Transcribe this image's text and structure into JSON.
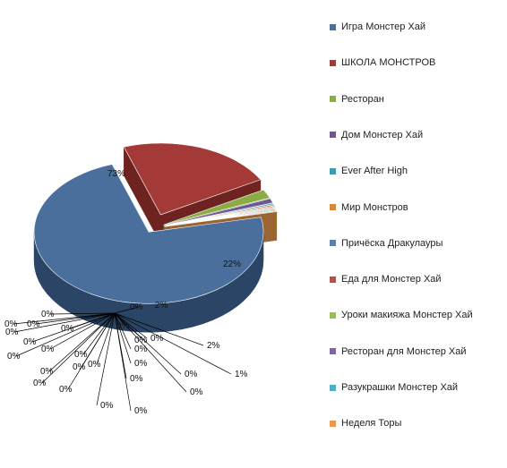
{
  "chart_data": {
    "type": "pie",
    "style": "3d-exploded",
    "title": "",
    "slices": [
      {
        "label": "Игра Монстер Хай",
        "value": 73,
        "color": "#4a6f9c",
        "side": "#2b4566",
        "label_text": "73%"
      },
      {
        "label": "ШКОЛА МОНСТРОВ",
        "value": 22,
        "color": "#a33a37",
        "side": "#6e2321",
        "label_text": "22%"
      },
      {
        "label": "Ресторан",
        "value": 2,
        "color": "#8aac44",
        "side": "#5b7427",
        "label_text": "2%"
      },
      {
        "label": "Дом Монстер Хай",
        "value": 1,
        "color": "#6e5690",
        "side": "#453660",
        "label_text": "1%"
      },
      {
        "label": "Ever After High",
        "value": 0.3,
        "color": "#3f9bb0",
        "side": "#276675",
        "label_text": "0%"
      },
      {
        "label": "Мир Монстров",
        "value": 0.3,
        "color": "#d6893a",
        "side": "#8f5a22",
        "label_text": "0%"
      },
      {
        "label": "Причёска Дракулауры",
        "value": 0.2,
        "color": "#5c7fb0",
        "side": "#3a5478",
        "label_text": "0%"
      },
      {
        "label": "Еда для Монстер Хай",
        "value": 0.2,
        "color": "#b84f4b",
        "side": "#7a322f",
        "label_text": "0%"
      },
      {
        "label": "Уроки макияжа Монстер Хай",
        "value": 0.2,
        "color": "#9bbd55",
        "side": "#667d34",
        "label_text": "0%"
      },
      {
        "label": "Ресторан для Монстер Хай",
        "value": 0.2,
        "color": "#7d66a1",
        "side": "#50406b",
        "label_text": "0%"
      },
      {
        "label": "Разукрашки Монстер Хай",
        "value": 0.2,
        "color": "#52aec2",
        "side": "#33717f",
        "label_text": "0%"
      },
      {
        "label": "Неделя Торы",
        "value": 0.2,
        "color": "#e59a4f",
        "side": "#9a6530",
        "label_text": "0%"
      }
    ],
    "extra_labels": [
      "0%",
      "0%",
      "0%",
      "0%",
      "0%",
      "0%",
      "0%",
      "0%",
      "0%",
      "0%",
      "0%",
      "0%",
      "0%",
      "0%",
      "0%",
      "0%",
      "0%",
      "0%",
      "0%",
      "0%",
      "0%",
      "0%",
      "0%",
      "0%",
      "0%"
    ],
    "legend_position": "right"
  }
}
